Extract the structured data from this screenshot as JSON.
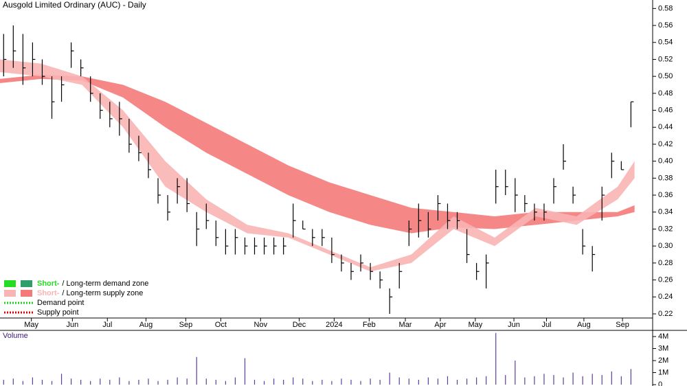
{
  "chart_data": [
    {
      "type": "ohlc",
      "title": "Ausgold Limited Ordinary (AUC) - Daily",
      "xlim": [
        0,
        541
      ],
      "ylim": [
        0.203,
        0.59
      ],
      "xticks": [
        {
          "value": 26,
          "label": "May"
        },
        {
          "value": 60,
          "label": "Jun"
        },
        {
          "value": 89,
          "label": "Jul"
        },
        {
          "value": 121,
          "label": "Aug"
        },
        {
          "value": 154,
          "label": "Sep"
        },
        {
          "value": 183,
          "label": "Oct"
        },
        {
          "value": 216,
          "label": "Nov"
        },
        {
          "value": 248,
          "label": "Dec"
        },
        {
          "value": 277,
          "label": "2024"
        },
        {
          "value": 306,
          "label": "Feb"
        },
        {
          "value": 336,
          "label": "Mar"
        },
        {
          "value": 365,
          "label": "Apr"
        },
        {
          "value": 394,
          "label": "May"
        },
        {
          "value": 426,
          "label": "Jun"
        },
        {
          "value": 453,
          "label": "Jul"
        },
        {
          "value": 484,
          "label": "Aug"
        },
        {
          "value": 516,
          "label": "Sep"
        }
      ],
      "yticks": [
        0.22,
        0.24,
        0.26,
        0.28,
        {
          "value": 0.3,
          "label": "0.30"
        },
        0.32,
        0.34,
        0.36,
        0.38,
        {
          "value": 0.4,
          "label": "0.40"
        },
        0.42,
        0.44,
        0.46,
        0.48,
        {
          "value": 0.5,
          "label": "0.50"
        },
        0.52,
        0.54,
        0.56,
        0.58
      ],
      "x": [
        3,
        11,
        19,
        27,
        35,
        43,
        51,
        59,
        67,
        75,
        83,
        91,
        99,
        107,
        115,
        123,
        131,
        139,
        147,
        155,
        163,
        171,
        179,
        187,
        195,
        203,
        211,
        219,
        227,
        235,
        243,
        251,
        259,
        267,
        275,
        283,
        291,
        299,
        307,
        315,
        323,
        331,
        339,
        347,
        355,
        363,
        371,
        379,
        387,
        395,
        403,
        411,
        419,
        427,
        435,
        443,
        451,
        459,
        467,
        475,
        483,
        491,
        499,
        507,
        515,
        523
      ],
      "high": [
        0.55,
        0.56,
        0.55,
        0.54,
        0.52,
        0.5,
        0.5,
        0.54,
        0.52,
        0.5,
        0.48,
        0.47,
        0.47,
        0.45,
        0.43,
        0.41,
        0.38,
        0.36,
        0.38,
        0.38,
        0.34,
        0.35,
        0.33,
        0.32,
        0.32,
        0.31,
        0.31,
        0.31,
        0.31,
        0.31,
        0.35,
        0.33,
        0.32,
        0.32,
        0.31,
        0.29,
        0.28,
        0.29,
        0.28,
        0.27,
        0.25,
        0.28,
        0.33,
        0.35,
        0.34,
        0.36,
        0.35,
        0.34,
        0.32,
        0.28,
        0.29,
        0.39,
        0.39,
        0.38,
        0.36,
        0.35,
        0.35,
        0.38,
        0.42,
        0.37,
        0.32,
        0.3,
        0.37,
        0.41,
        0.4,
        0.47
      ],
      "low": [
        0.5,
        0.51,
        0.49,
        0.5,
        0.49,
        0.45,
        0.47,
        0.51,
        0.5,
        0.47,
        0.45,
        0.44,
        0.43,
        0.41,
        0.4,
        0.38,
        0.35,
        0.33,
        0.35,
        0.34,
        0.3,
        0.32,
        0.3,
        0.29,
        0.29,
        0.29,
        0.29,
        0.29,
        0.29,
        0.29,
        0.31,
        0.32,
        0.3,
        0.3,
        0.28,
        0.27,
        0.26,
        0.27,
        0.26,
        0.25,
        0.22,
        0.25,
        0.3,
        0.31,
        0.31,
        0.33,
        0.32,
        0.32,
        0.28,
        0.26,
        0.25,
        0.35,
        0.36,
        0.34,
        0.34,
        0.33,
        0.33,
        0.35,
        0.39,
        0.35,
        0.29,
        0.27,
        0.33,
        0.38,
        0.39,
        0.44
      ],
      "close": [
        0.52,
        0.53,
        0.51,
        0.52,
        0.5,
        0.47,
        0.49,
        0.53,
        0.51,
        0.48,
        0.46,
        0.45,
        0.45,
        0.42,
        0.41,
        0.39,
        0.36,
        0.34,
        0.37,
        0.35,
        0.32,
        0.33,
        0.31,
        0.3,
        0.31,
        0.3,
        0.3,
        0.3,
        0.3,
        0.3,
        0.33,
        0.32,
        0.31,
        0.31,
        0.29,
        0.28,
        0.27,
        0.28,
        0.27,
        0.26,
        0.24,
        0.27,
        0.32,
        0.33,
        0.32,
        0.35,
        0.33,
        0.33,
        0.29,
        0.27,
        0.28,
        0.37,
        0.37,
        0.36,
        0.35,
        0.34,
        0.34,
        0.37,
        0.4,
        0.36,
        0.3,
        0.29,
        0.36,
        0.4,
        0.39,
        0.47
      ],
      "color": "#000000",
      "bands": [
        {
          "x": [
            0,
            34,
            68,
            102,
            137,
            171,
            205,
            239,
            273,
            307,
            341,
            376,
            410,
            444,
            478,
            512,
            526
          ],
          "upper": [
            0.497,
            0.502,
            0.5,
            0.49,
            0.47,
            0.445,
            0.42,
            0.395,
            0.375,
            0.36,
            0.345,
            0.34,
            0.335,
            0.34,
            0.34,
            0.34,
            0.348
          ],
          "lower": [
            0.492,
            0.497,
            0.495,
            0.475,
            0.44,
            0.41,
            0.385,
            0.36,
            0.34,
            0.325,
            0.315,
            0.322,
            0.32,
            0.325,
            0.33,
            0.335,
            0.34
          ],
          "color": "#f47a7a"
        },
        {
          "x": [
            0,
            34,
            68,
            102,
            137,
            171,
            205,
            239,
            273,
            307,
            341,
            376,
            410,
            444,
            478,
            512,
            526
          ],
          "upper": [
            0.52,
            0.515,
            0.5,
            0.46,
            0.4,
            0.355,
            0.325,
            0.315,
            0.295,
            0.275,
            0.29,
            0.335,
            0.31,
            0.345,
            0.335,
            0.37,
            0.4
          ],
          "lower": [
            0.505,
            0.5,
            0.49,
            0.44,
            0.37,
            0.34,
            0.315,
            0.31,
            0.29,
            0.27,
            0.28,
            0.32,
            0.3,
            0.335,
            0.325,
            0.355,
            0.38
          ],
          "color": "#f9b4b4"
        }
      ],
      "legend": [
        {
          "short": "Short-",
          "rest": "/ Long-term demand zone",
          "colors": [
            "#22dd22",
            "#2e9e6b"
          ]
        },
        {
          "short": "Short-",
          "rest": "/ Long-term supply zone",
          "colors": [
            "#f9b4b4",
            "#f47a7a"
          ]
        },
        {
          "text": "Demand point",
          "color": "#22cc22"
        },
        {
          "text": "Supply point",
          "color": "#dd0000"
        }
      ]
    },
    {
      "type": "bar",
      "title": "Volume",
      "xlim": [
        0,
        541
      ],
      "ylim": [
        0,
        4400000
      ],
      "yticks": [
        0,
        {
          "value": 1000000,
          "label": "1M"
        },
        {
          "value": 2000000,
          "label": "2M"
        },
        {
          "value": 3000000,
          "label": "3M"
        },
        {
          "value": 4000000,
          "label": "4M"
        }
      ],
      "x": [
        3,
        11,
        19,
        27,
        35,
        43,
        51,
        59,
        67,
        75,
        83,
        91,
        99,
        107,
        115,
        123,
        131,
        139,
        147,
        155,
        163,
        171,
        179,
        187,
        195,
        203,
        211,
        219,
        227,
        235,
        243,
        251,
        259,
        267,
        275,
        283,
        291,
        299,
        307,
        315,
        323,
        331,
        339,
        347,
        355,
        363,
        371,
        379,
        387,
        395,
        403,
        411,
        419,
        427,
        435,
        443,
        451,
        459,
        467,
        475,
        483,
        491,
        499,
        507,
        515,
        523
      ],
      "values": [
        400000,
        500000,
        300000,
        600000,
        400000,
        300000,
        900000,
        500000,
        400000,
        300000,
        500000,
        400000,
        600000,
        300000,
        400000,
        500000,
        300000,
        400000,
        600000,
        500000,
        2300000,
        500000,
        400000,
        300000,
        600000,
        2200000,
        400000,
        300000,
        500000,
        400000,
        600000,
        500000,
        300000,
        400000,
        300000,
        500000,
        400000,
        300000,
        500000,
        400000,
        1000000,
        600000,
        500000,
        400000,
        600000,
        500000,
        700000,
        400000,
        500000,
        600000,
        700000,
        4300000,
        800000,
        2000000,
        600000,
        700000,
        900000,
        800000,
        600000,
        1000000,
        700000,
        900000,
        800000,
        1100000,
        700000,
        1300000
      ],
      "color": "#5a3fa0"
    }
  ]
}
